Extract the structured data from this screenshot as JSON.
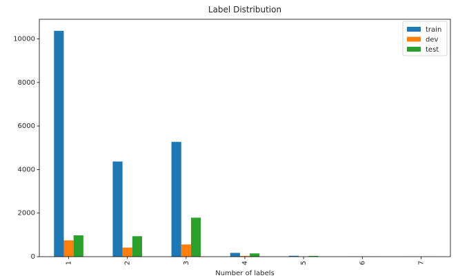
{
  "chart_data": {
    "type": "bar",
    "title": "Label Distribution",
    "xlabel": "Number of labels",
    "ylabel": "",
    "categories": [
      "1",
      "2",
      "3",
      "4",
      "5",
      "6",
      "7"
    ],
    "series": [
      {
        "name": "train",
        "color": "#1f77b4",
        "values": [
          10370,
          4370,
          5270,
          175,
          40,
          8,
          3
        ]
      },
      {
        "name": "dev",
        "color": "#ff7f0e",
        "values": [
          750,
          420,
          560,
          35,
          8,
          2,
          1
        ]
      },
      {
        "name": "test",
        "color": "#2ca02c",
        "values": [
          980,
          940,
          1790,
          150,
          35,
          5,
          2
        ]
      }
    ],
    "ylim": [
      0,
      10900
    ],
    "yticks": [
      0,
      2000,
      4000,
      6000,
      8000,
      10000
    ],
    "legend": "top-right",
    "grid": false
  }
}
